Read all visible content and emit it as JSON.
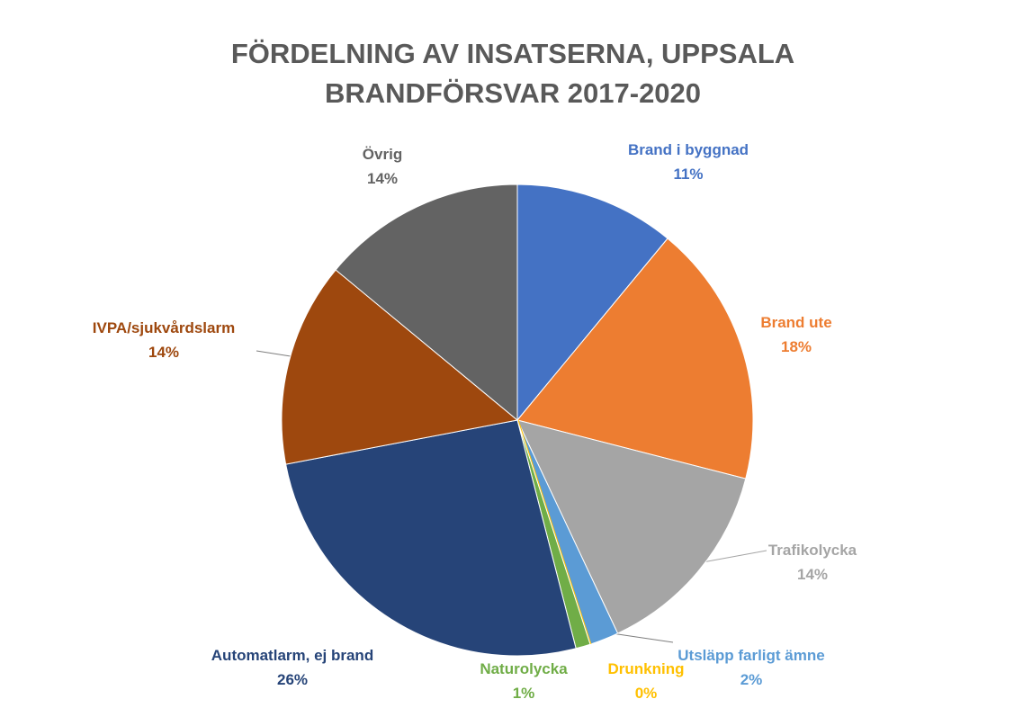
{
  "chart_data": {
    "type": "pie",
    "title": "FÖRDELNING AV INSATSERNA, UPPSALA BRANDFÖRSVAR 2017-2020",
    "categories": [
      "Brand i byggnad",
      "Brand ute",
      "Trafikolycka",
      "Utsläpp farligt ämne",
      "Drunkning",
      "Naturolycka",
      "Automatlarm, ej brand",
      "IVPA/sjukvårdslarm",
      "Övrig"
    ],
    "values": [
      11,
      18,
      14,
      2,
      0,
      1,
      26,
      14,
      14
    ],
    "value_labels": [
      "11%",
      "18%",
      "14%",
      "2%",
      "0%",
      "1%",
      "26%",
      "14%",
      "14%"
    ],
    "colors": [
      "#4472c4",
      "#ed7d31",
      "#a5a5a5",
      "#5b9bd5",
      "#ffc000",
      "#70ad47",
      "#264478",
      "#9e480e",
      "#636363"
    ]
  }
}
